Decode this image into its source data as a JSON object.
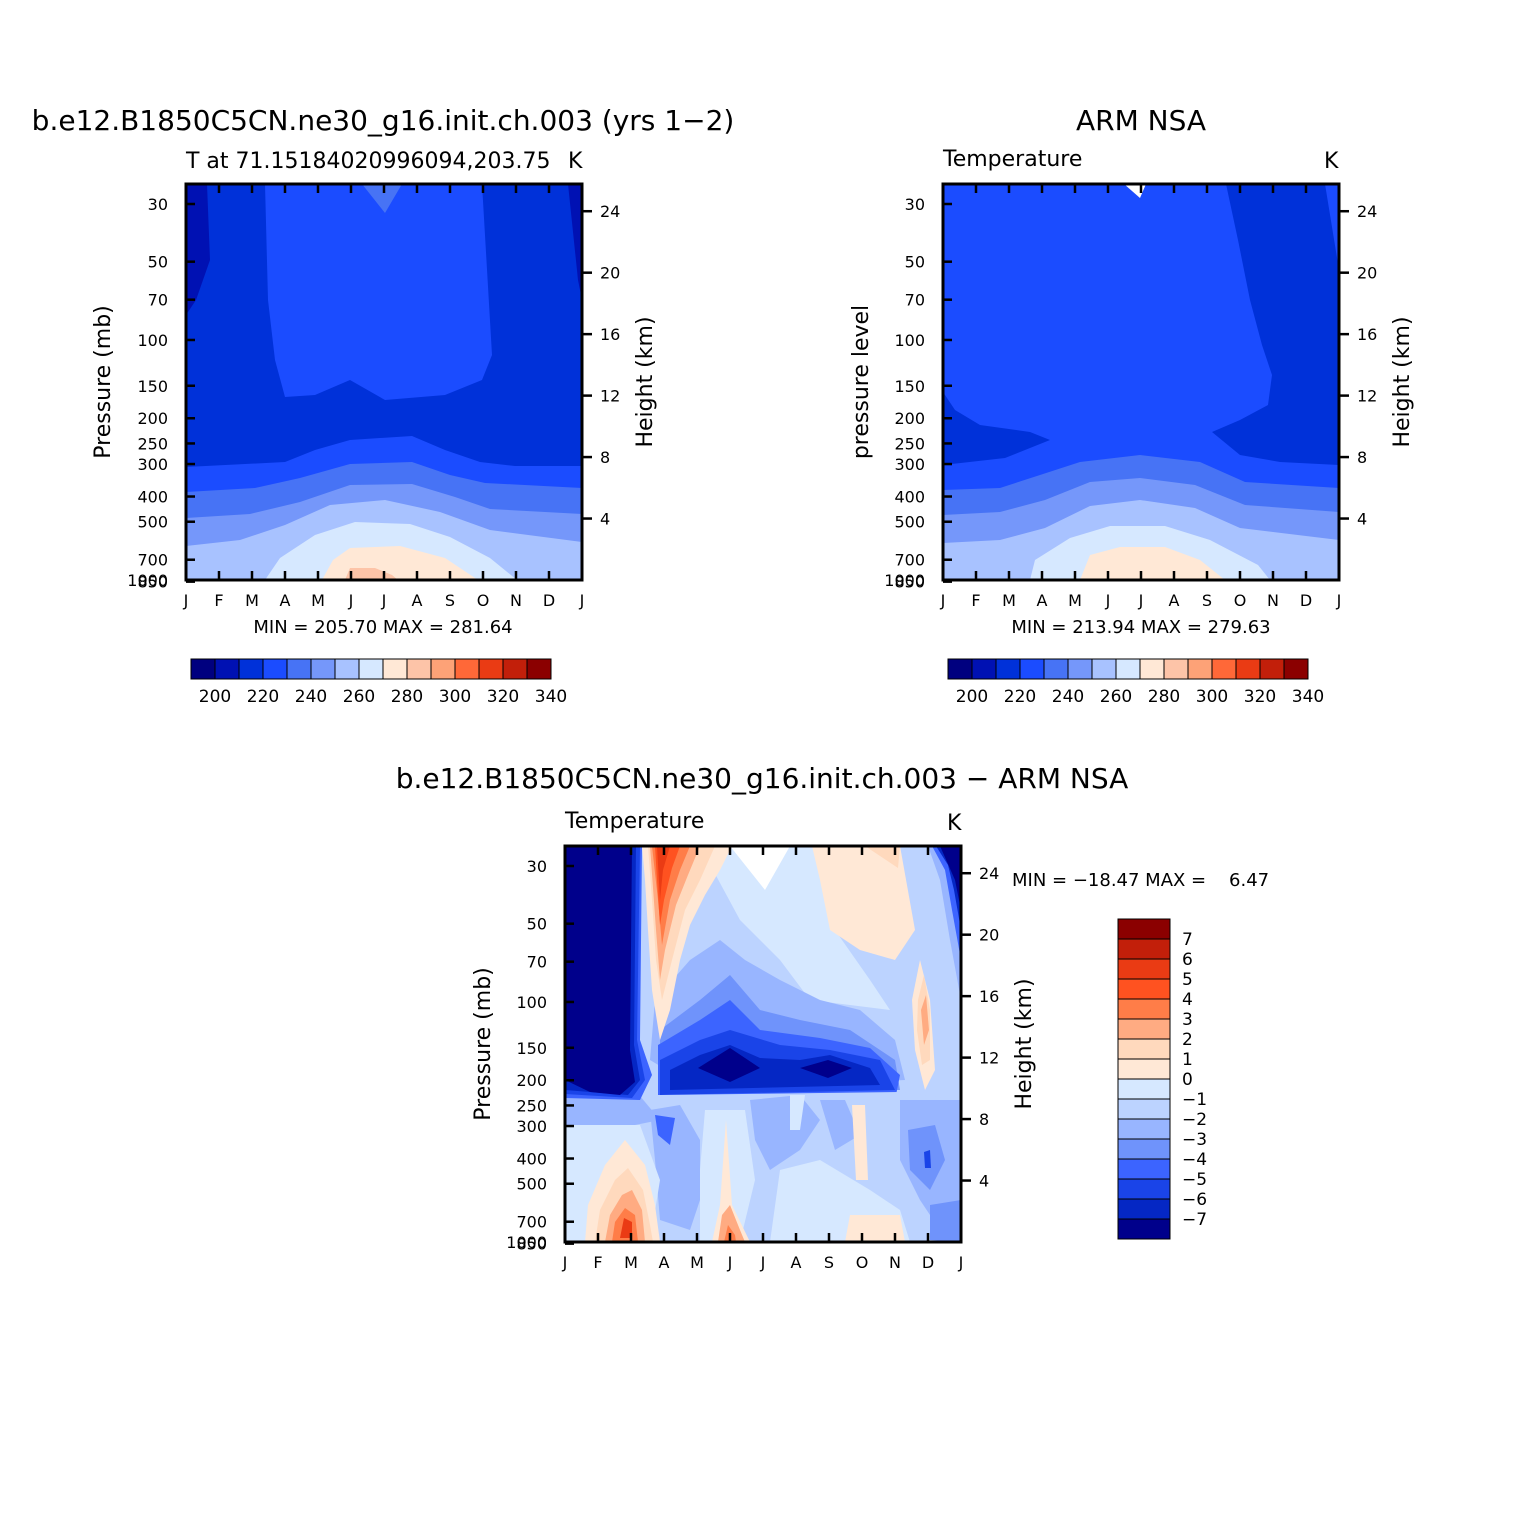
{
  "months": [
    "J",
    "F",
    "M",
    "A",
    "M",
    "J",
    "J",
    "A",
    "S",
    "O",
    "N",
    "D",
    "J"
  ],
  "pressure_ticks": [
    30,
    50,
    70,
    100,
    150,
    200,
    250,
    300,
    400,
    500,
    700,
    850,
    1000
  ],
  "height_ticks": [
    4,
    8,
    12,
    16,
    20,
    24
  ],
  "temp_colorbar": {
    "colors": [
      "#00007f",
      "#0011b3",
      "#0031d9",
      "#1b4cff",
      "#4773f5",
      "#7597fa",
      "#a8c2ff",
      "#d6e8ff",
      "#ffe8d6",
      "#fdc4a8",
      "#fda277",
      "#ff6838",
      "#ea3b14",
      "#c21f0a",
      "#8b0000"
    ],
    "labels": [
      "200",
      "220",
      "240",
      "260",
      "280",
      "300",
      "320",
      "340"
    ]
  },
  "diff_colorbar": {
    "colors": [
      "#8b0000",
      "#c21f0a",
      "#ea3b14",
      "#ff5220",
      "#ff7d48",
      "#ffab82",
      "#ffd9bd",
      "#ffe8d6",
      "#d6e8ff",
      "#bcd3ff",
      "#98b5ff",
      "#6f93fb",
      "#3c64ff",
      "#1a44e8",
      "#0527c4",
      "#00008b"
    ],
    "labels": [
      "7",
      "6",
      "5",
      "4",
      "3",
      "2",
      "1",
      "0",
      "−1",
      "−2",
      "−3",
      "−4",
      "−5",
      "−6",
      "−7"
    ]
  },
  "chart_data": [
    {
      "type": "heatmap",
      "title": "b.e12.B1850C5CN.ne30_g16.init.ch.003 (yrs 1−2)",
      "subtitle": "T at 71.15184020996094,203.75",
      "units": "K",
      "xlabel": "",
      "ylabel": "Pressure (mb)",
      "ylabel_right": "Height (km)",
      "stats": "MIN = 205.70 MAX = 281.64",
      "min": 205.7,
      "max": 281.64
    },
    {
      "type": "heatmap",
      "title": "ARM NSA",
      "subtitle": "Temperature",
      "units": "K",
      "xlabel": "",
      "ylabel": "pressure level",
      "ylabel_right": "Height (km)",
      "stats": "MIN = 213.94 MAX = 279.63",
      "min": 213.94,
      "max": 279.63
    },
    {
      "type": "heatmap",
      "title": "b.e12.B1850C5CN.ne30_g16.init.ch.003 − ARM NSA",
      "subtitle": "Temperature",
      "units": "K",
      "xlabel": "",
      "ylabel": "Pressure (mb)",
      "ylabel_right": "Height (km)",
      "stats": "MIN = −18.47 MAX =    6.47",
      "min": -18.47,
      "max": 6.47
    }
  ]
}
